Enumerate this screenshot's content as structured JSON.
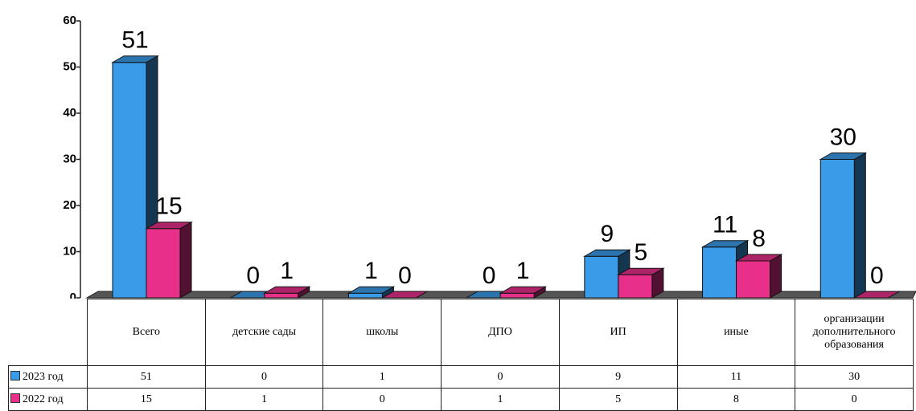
{
  "chart_data": {
    "type": "bar3d",
    "categories": [
      "Всего",
      "детские сады",
      "школы",
      "ДПО",
      "ИП",
      "иные",
      "организации дополнительного образования"
    ],
    "series": [
      {
        "name": "2023 год",
        "color": "#3a9be8",
        "values": [
          51,
          0,
          1,
          0,
          9,
          11,
          30
        ]
      },
      {
        "name": "2022 год",
        "color": "#e8308a",
        "values": [
          15,
          1,
          0,
          1,
          5,
          8,
          0
        ]
      }
    ],
    "ylim": [
      0,
      60
    ],
    "yticks": [
      0,
      10,
      20,
      30,
      40,
      50,
      60
    ]
  }
}
